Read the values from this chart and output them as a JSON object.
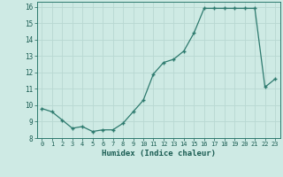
{
  "x": [
    0,
    1,
    2,
    3,
    4,
    5,
    6,
    7,
    8,
    9,
    10,
    11,
    12,
    13,
    14,
    15,
    16,
    17,
    18,
    19,
    20,
    21,
    22,
    23
  ],
  "y": [
    9.8,
    9.6,
    9.1,
    8.6,
    8.7,
    8.4,
    8.5,
    8.5,
    8.9,
    9.6,
    10.3,
    11.9,
    12.6,
    12.8,
    13.3,
    14.4,
    15.9,
    15.9,
    15.9,
    15.9,
    15.9,
    15.9,
    11.1,
    11.6
  ],
  "xlabel": "Humidex (Indice chaleur)",
  "xlim": [
    -0.5,
    23.5
  ],
  "ylim": [
    8.0,
    16.3
  ],
  "yticks": [
    8,
    9,
    10,
    11,
    12,
    13,
    14,
    15,
    16
  ],
  "xticks": [
    0,
    1,
    2,
    3,
    4,
    5,
    6,
    7,
    8,
    9,
    10,
    11,
    12,
    13,
    14,
    15,
    16,
    17,
    18,
    19,
    20,
    21,
    22,
    23
  ],
  "line_color": "#2d7a6e",
  "marker": "+",
  "bg_color": "#ceeae4",
  "grid_color": "#b8d8d2",
  "label_color": "#1a5c52",
  "tick_color": "#1a5c52"
}
